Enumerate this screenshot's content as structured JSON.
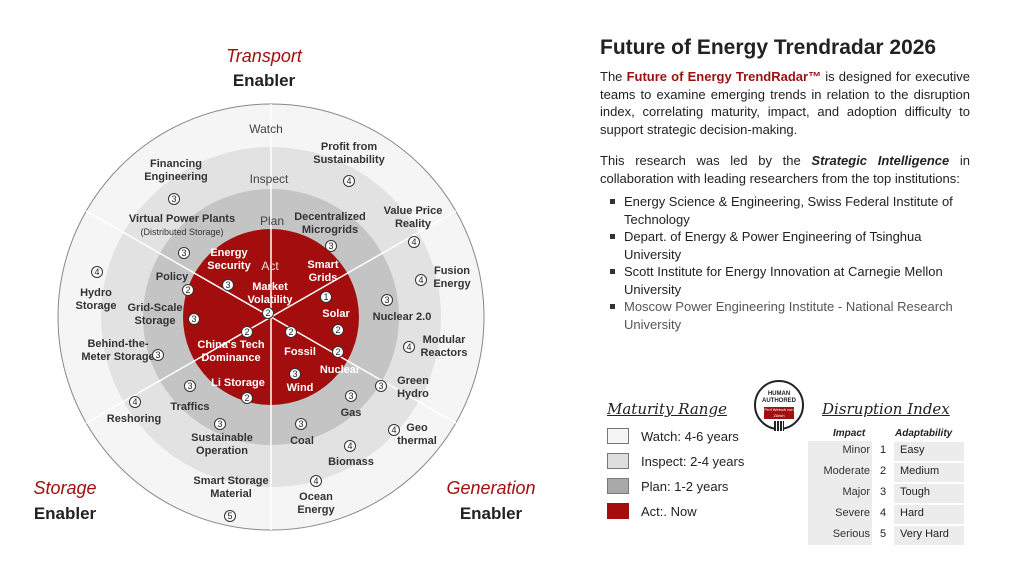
{
  "sectors": [
    {
      "key": "transport",
      "script": "Transport",
      "enabler": "Enabler"
    },
    {
      "key": "storage",
      "script": "Storage",
      "enabler": "Enabler"
    },
    {
      "key": "generation",
      "script": "Generation",
      "enabler": "Enabler"
    }
  ],
  "rings": {
    "watch": "Watch",
    "inspect": "Inspect",
    "plan": "Plan",
    "act": "Act"
  },
  "ring_colors": {
    "watch": "#f5f5f5",
    "inspect": "#e2e2e2",
    "plan": "#c4c4c4",
    "act": "#a30d0d"
  },
  "trends": [
    {
      "lines": [
        "Profit from",
        "Sustainability"
      ],
      "num": "4"
    },
    {
      "lines": [
        "Financing",
        "Engineering"
      ],
      "num": "3"
    },
    {
      "lines": [
        "Virtual Power Plants"
      ],
      "sub": "(Distributed Storage)",
      "num": "3"
    },
    {
      "lines": [
        "Decentralized",
        "Microgrids"
      ],
      "num": "3"
    },
    {
      "lines": [
        "Value Price",
        "Reality"
      ],
      "num": "4"
    },
    {
      "lines": [
        "Energy",
        "Security"
      ],
      "num": "3"
    },
    {
      "lines": [
        "Smart",
        "Grids"
      ],
      "num": "1"
    },
    {
      "lines": [
        "Market",
        "Volatility"
      ],
      "num": "2"
    },
    {
      "lines": [
        "Policy"
      ],
      "num": "2"
    },
    {
      "lines": [
        "Hydro",
        "Storage"
      ],
      "num": "4"
    },
    {
      "lines": [
        "Grid-Scale",
        "Storage"
      ],
      "num": "3"
    },
    {
      "lines": [
        "Fusion",
        "Energy"
      ],
      "num": "4"
    },
    {
      "lines": [
        "Nuclear 2.0"
      ],
      "num": "3"
    },
    {
      "lines": [
        "Solar"
      ],
      "num": "2"
    },
    {
      "lines": [
        "China's Tech",
        "Dominance"
      ],
      "num": "2"
    },
    {
      "lines": [
        "Fossil"
      ],
      "num": "2"
    },
    {
      "lines": [
        "Nuclear"
      ],
      "num": "2"
    },
    {
      "lines": [
        "Behind-the-",
        "Meter Storage"
      ],
      "num": "3"
    },
    {
      "lines": [
        "Modular",
        "Reactors"
      ],
      "num": "4"
    },
    {
      "lines": [
        "Li Storage"
      ],
      "num": "2"
    },
    {
      "lines": [
        "Wind"
      ],
      "num": "3"
    },
    {
      "lines": [
        "Traffics"
      ],
      "num": "3"
    },
    {
      "lines": [
        "Green",
        "Hydro"
      ],
      "num": "3"
    },
    {
      "lines": [
        "Reshoring"
      ],
      "num": "4"
    },
    {
      "lines": [
        "Gas"
      ],
      "num": "3"
    },
    {
      "lines": [
        "Sustainable",
        "Operation"
      ],
      "num": "3"
    },
    {
      "lines": [
        "Coal"
      ],
      "num": "3"
    },
    {
      "lines": [
        "Geo",
        "thermal"
      ],
      "num": "4"
    },
    {
      "lines": [
        "Biomass"
      ],
      "num": "4"
    },
    {
      "lines": [
        "Smart Storage",
        "Material"
      ],
      "num": "5"
    },
    {
      "lines": [
        "Ocean",
        "Energy"
      ],
      "num": "4"
    }
  ],
  "title": "Future of Energy Trendradar 2026",
  "intro": {
    "p1_pre": "The ",
    "p1_brand": "Future of Energy TrendRadar™",
    "p1_post": " is designed for executive teams to examine emerging trends in relation to the disruption index, correlating maturity, impact, and adoption difficulty to support strategic decision-making.",
    "p2_pre": "This research was led by the ",
    "p2_emph": "Strategic Intelligence",
    "p2_post": " in collaboration with leading researchers from the top institutions:"
  },
  "institutions": [
    "Energy Science & Engineering, Swiss Federal Institute of Technology",
    "Depart. of Energy & Power Engineering of Tsinghua University",
    "Scott Institute for Energy Innovation at Carnegie Mellon University",
    "Moscow Power Engineering Institute - National Research University"
  ],
  "badge": {
    "line1": "HUMAN",
    "line2": "AUTHORED",
    "line3": "Prof Weinch von Zürich"
  },
  "maturity": {
    "heading": "Maturity Range",
    "items": [
      {
        "label": "Watch: 4-6 years",
        "color": "#f5f5f5"
      },
      {
        "label": "Inspect: 2-4 years",
        "color": "#dedede"
      },
      {
        "label": "Plan: 1-2 years",
        "color": "#a9a9a9"
      },
      {
        "label": "Act:. Now",
        "color": "#a30d0d"
      }
    ]
  },
  "disruption": {
    "heading": "Disruption Index",
    "col_impact": "Impact",
    "col_adapt": "Adaptability",
    "rows": [
      {
        "impact": "Minor",
        "n": "1",
        "adapt": "Easy"
      },
      {
        "impact": "Moderate",
        "n": "2",
        "adapt": "Medium"
      },
      {
        "impact": "Major",
        "n": "3",
        "adapt": "Tough"
      },
      {
        "impact": "Severe",
        "n": "4",
        "adapt": "Hard"
      },
      {
        "impact": "Serious",
        "n": "5",
        "adapt": "Very Hard"
      }
    ]
  }
}
